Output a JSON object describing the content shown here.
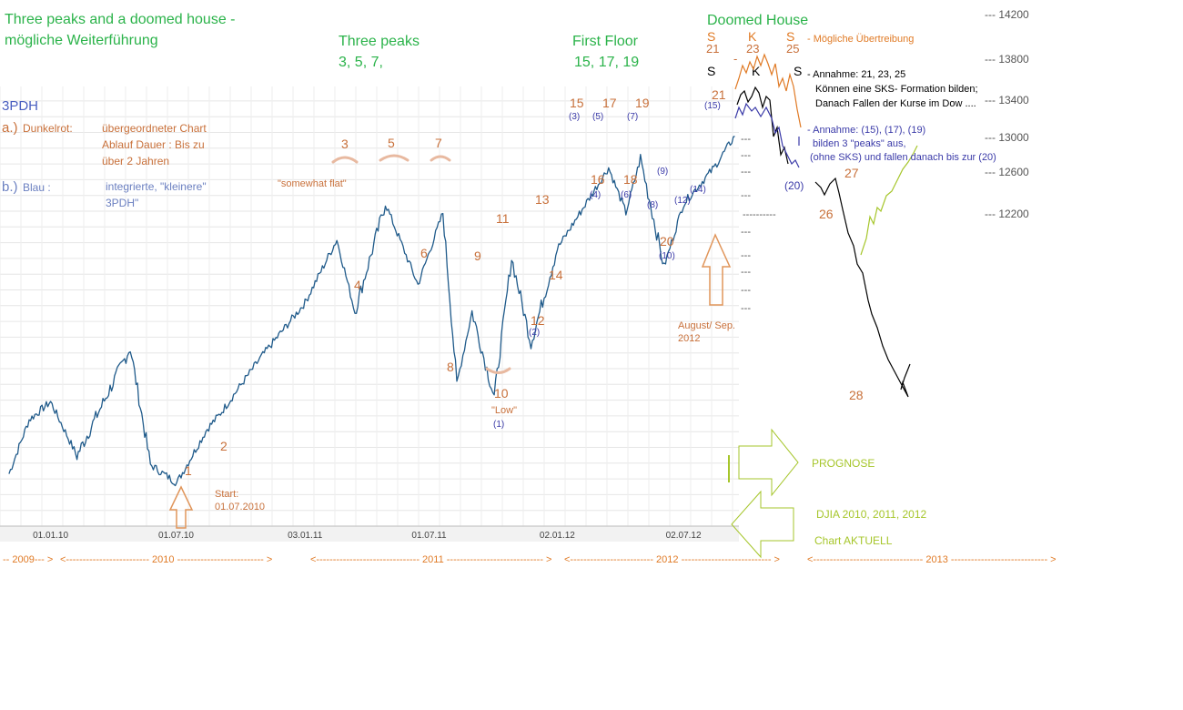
{
  "colors": {
    "title": "#2bb34a",
    "annotation": "#c8703a",
    "blue_label": "#3a3aa8",
    "light_blue_label": "#6a7fc0",
    "series": "#1f5a8a",
    "prognose": "#a6c62b",
    "skk_orange": "#e07a25",
    "grid": "#e4e4e4"
  },
  "title": {
    "line1": "Three peaks and a doomed house -",
    "line2": "mögliche Weiterführung"
  },
  "headings": {
    "three_peaks": "Three peaks",
    "three_peaks_nums": "3, 5, 7,",
    "first_floor": "First Floor",
    "first_floor_nums": "15, 17, 19",
    "doomed_house": "Doomed  House"
  },
  "legend": {
    "tag": "3PDH",
    "a_prefix": "a.)",
    "a_label": "Dunkelrot:",
    "a_desc1": "übergeordneter Chart",
    "a_desc2": "Ablauf Dauer :    Bis zu",
    "a_desc3": "über 2 Jahren",
    "b_prefix": "b.)",
    "b_label": "Blau      :",
    "b_desc1": "integrierte, \"kleinere\"",
    "b_desc2": "3PDH\""
  },
  "chart_annotations": {
    "somewhat_flat": "\"somewhat flat\"",
    "low": "\"Low\"",
    "start_label": "Start:",
    "start_date": "01.07.2010",
    "aug_sep": "August/ Sep.",
    "aug_sep_year": "2012"
  },
  "wave_labels": [
    {
      "t": "1"
    },
    {
      "t": "2"
    },
    {
      "t": "3"
    },
    {
      "t": "4"
    },
    {
      "t": "5"
    },
    {
      "t": "6"
    },
    {
      "t": "7"
    },
    {
      "t": "8"
    },
    {
      "t": "9"
    },
    {
      "t": "10"
    },
    {
      "t": "11"
    },
    {
      "t": "12"
    },
    {
      "t": "13"
    },
    {
      "t": "14"
    },
    {
      "t": "15"
    },
    {
      "t": "16"
    },
    {
      "t": "17"
    },
    {
      "t": "18"
    },
    {
      "t": "19"
    },
    {
      "t": "20"
    },
    {
      "t": "21"
    },
    {
      "t": "23"
    },
    {
      "t": "25"
    },
    {
      "t": "26"
    },
    {
      "t": "27"
    },
    {
      "t": "28"
    }
  ],
  "sub_labels": [
    "(1)",
    "(2)",
    "(3)",
    "(4)",
    "(5)",
    "(6)",
    "(7)",
    "(8)",
    "(9)",
    "(10)",
    "(12)",
    "(14)",
    "(15)",
    "(20)"
  ],
  "sks_row": {
    "s1": "S",
    "k": "K",
    "s2": "S",
    "n1": "21",
    "n2": "23",
    "n3": "25",
    "dash": "-",
    "orange_note": "-  Mögliche Übertreibung",
    "black_s1": "S",
    "black_k": "K",
    "black_s2": "S"
  },
  "notes": {
    "annahme1": "- Annahme: 21, 23, 25",
    "annahme1_l2": "Können eine SKS- Formation bilden;",
    "annahme1_l3": "Danach Fallen der Kurse im Dow ....",
    "annahme2": "- Annahme: (15), (17), (19)",
    "annahme2_l2": "bilden 3 \"peaks\" aus,",
    "annahme2_l3": "(ohne SKS) und fallen danach bis zur (20)"
  },
  "right_panel": {
    "prognose": "PROGNOSE",
    "djia": "DJIA 2010, 2011, 2012",
    "chart_aktuell": "Chart AKTUELL"
  },
  "dashes": "---",
  "long_dash": "----------",
  "chart_data": {
    "type": "line",
    "title": "",
    "series": [
      {
        "name": "DJIA",
        "x": [
          "2009-11-02",
          "2009-12-01",
          "2010-01-01",
          "2010-02-08",
          "2010-04-26",
          "2010-05-25",
          "2010-07-02",
          "2010-08-15",
          "2010-09-01",
          "2010-11-01",
          "2011-01-03",
          "2011-02-18",
          "2011-03-16",
          "2011-04-29",
          "2011-06-15",
          "2011-07-21",
          "2011-08-10",
          "2011-09-01",
          "2011-10-03",
          "2011-10-28",
          "2011-11-25",
          "2012-01-02",
          "2012-03-16",
          "2012-04-10",
          "2012-05-01",
          "2012-06-04",
          "2012-07-02",
          "2012-08-15",
          "2012-09-14"
        ],
        "values": [
          9800,
          10400,
          10600,
          10000,
          11200,
          9900,
          9700,
          10300,
          10450,
          11100,
          11700,
          12400,
          11600,
          12800,
          11900,
          12700,
          10800,
          11600,
          10650,
          12200,
          11250,
          12300,
          13200,
          12700,
          13300,
          12100,
          12800,
          13200,
          13550
        ]
      }
    ],
    "xlabel": "",
    "ylabel": "",
    "x_tick_labels": [
      "01.01.10",
      "01.07.10",
      "03.01.11",
      "01.07.11",
      "02.01.12",
      "02.07.12"
    ],
    "year_bar": [
      "-- 2009--- >",
      "<------------------------- 2010 -------------------------- >",
      "<------------------------------- 2011 ----------------------------- >",
      "<------------------------- 2012 --------------------------- >",
      "<--------------------------------- 2013 ----------------------------- >"
    ],
    "y_tick_labels": [
      "--- 14200",
      "--- 13800",
      "--- 13400",
      "--- 13000",
      "--- 12600",
      "--- 12200"
    ],
    "y_ticks": [
      14200,
      13800,
      13400,
      13000,
      12600,
      12200
    ],
    "grid": true
  }
}
